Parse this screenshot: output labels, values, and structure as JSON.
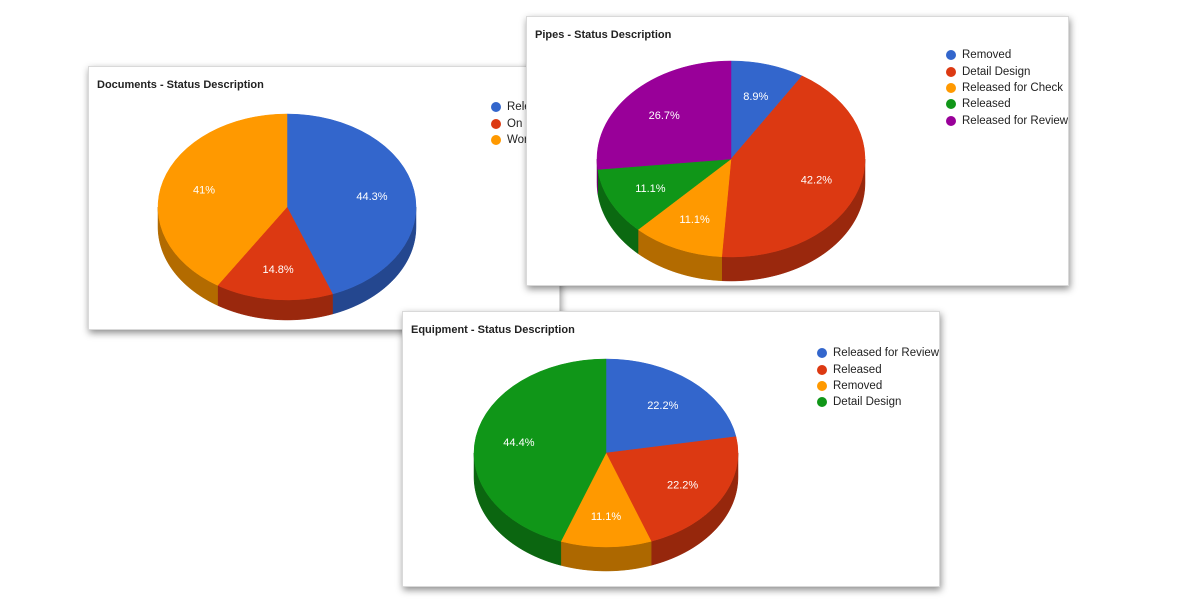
{
  "chart_data": [
    {
      "type": "pie",
      "title": "Documents - Status Description",
      "labels": [
        "Released",
        "On Hold",
        "Working"
      ],
      "values": [
        44.3,
        14.8,
        41.0
      ],
      "value_labels": [
        "44.3%",
        "14.8%",
        "41%"
      ],
      "colors": [
        "#3366cc",
        "#dc3912",
        "#ff9900"
      ],
      "three_d": true,
      "legend": "right"
    },
    {
      "type": "pie",
      "title": "Pipes - Status Description",
      "labels": [
        "Removed",
        "Detail Design",
        "Released for Check",
        "Released",
        "Released for Review"
      ],
      "values": [
        8.9,
        42.2,
        11.1,
        11.1,
        26.7
      ],
      "value_labels": [
        "8.9%",
        "42.2%",
        "11.1%",
        "11.1%",
        "26.7%"
      ],
      "colors": [
        "#3366cc",
        "#dc3912",
        "#ff9900",
        "#109618",
        "#990099"
      ],
      "three_d": true,
      "legend": "right"
    },
    {
      "type": "pie",
      "title": "Equipment - Status Description",
      "labels": [
        "Released for Review",
        "Released",
        "Removed",
        "Detail Design"
      ],
      "values": [
        22.2,
        22.2,
        11.1,
        44.4
      ],
      "value_labels": [
        "22.2%",
        "22.2%",
        "11.1%",
        "44.4%"
      ],
      "colors": [
        "#3366cc",
        "#dc3912",
        "#ff9900",
        "#109618"
      ],
      "three_d": true,
      "legend": "right"
    }
  ]
}
